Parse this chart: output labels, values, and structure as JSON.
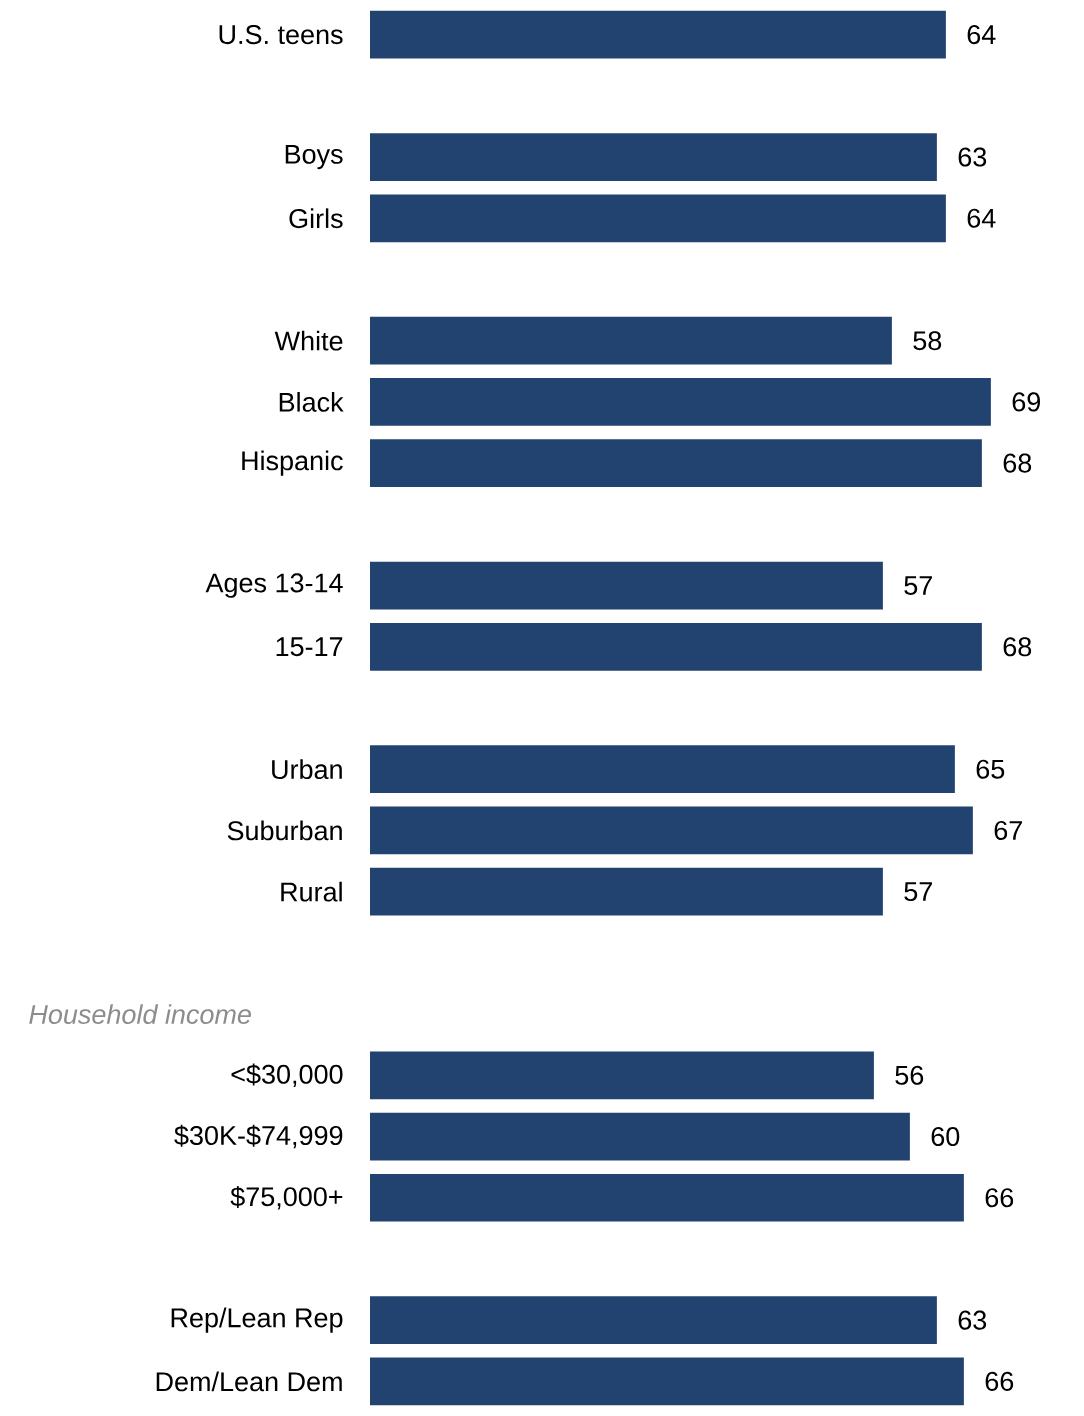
{
  "chart_data": {
    "type": "bar",
    "orientation": "horizontal",
    "data_labels": true,
    "color": "#22426f",
    "categories": [
      "U.S. teens",
      null,
      "Boys",
      "Girls",
      null,
      "White",
      "Black",
      "Hispanic",
      null,
      "Ages 13-14",
      "15-17",
      null,
      "Urban",
      "Suburban",
      "Rural",
      null,
      null,
      "<$30,000",
      "$30K-$74,999",
      "$75,000+",
      null,
      "Rep/Lean Rep",
      "Dem/Lean Dem"
    ],
    "values": [
      64,
      null,
      63,
      64,
      null,
      58,
      69,
      68,
      null,
      57,
      68,
      null,
      65,
      67,
      57,
      null,
      null,
      56,
      60,
      66,
      null,
      63,
      66
    ],
    "annotations": [
      "Household income"
    ]
  }
}
